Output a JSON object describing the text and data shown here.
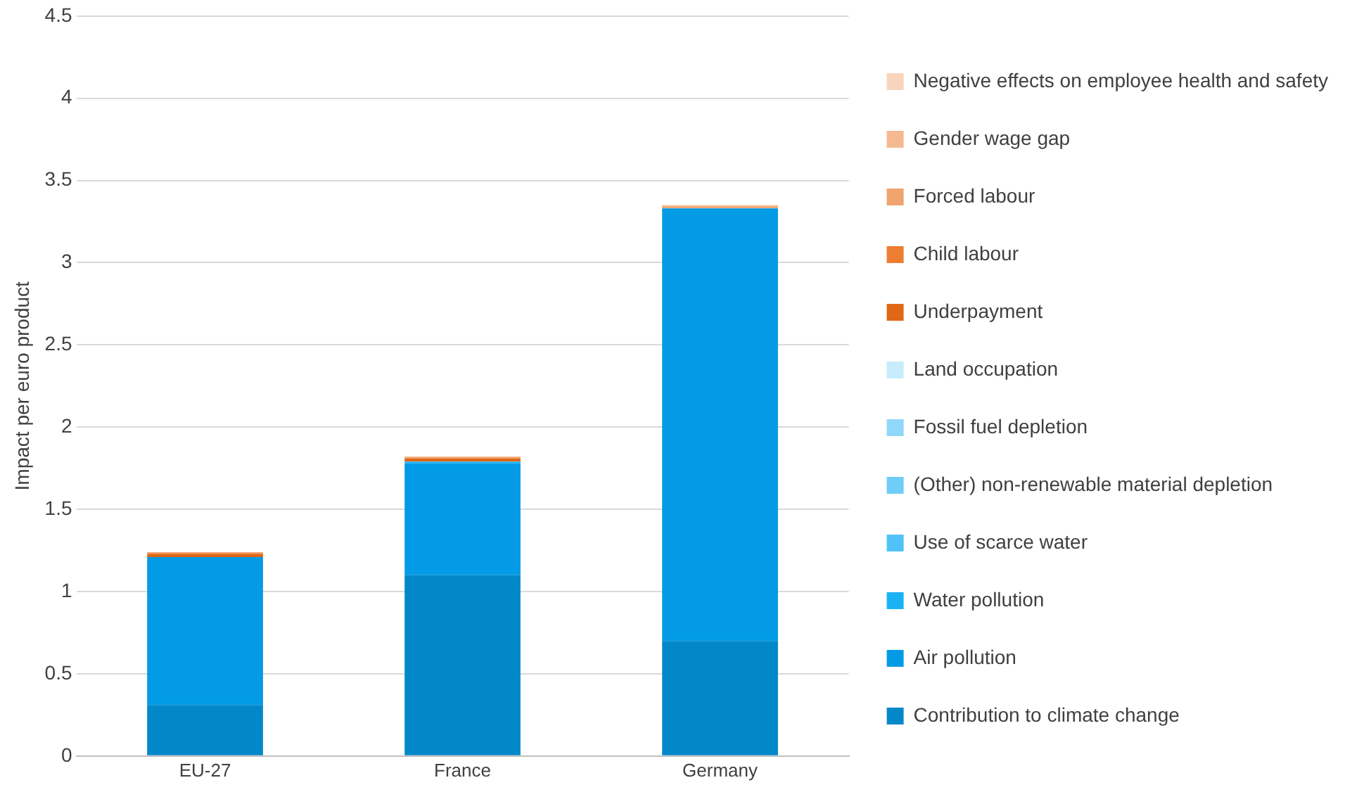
{
  "chart_data": {
    "type": "bar",
    "stacked": true,
    "ylabel": "Impact per euro product",
    "categories": [
      "EU-27",
      "France",
      "Germany"
    ],
    "ylim": [
      0,
      4.5
    ],
    "yticks": [
      0,
      0.5,
      1,
      1.5,
      2,
      2.5,
      3,
      3.5,
      4,
      4.5
    ],
    "grid": "y",
    "legend": "right",
    "series": [
      {
        "name": "Contribution to climate change",
        "color": "#0288c9",
        "values": [
          0.31,
          1.1,
          0.7
        ]
      },
      {
        "name": "Air pollution",
        "color": "#039be5",
        "values": [
          0.9,
          0.68,
          2.63
        ]
      },
      {
        "name": "Water pollution",
        "color": "#1ab2f5",
        "values": [
          0,
          0.01,
          0
        ]
      },
      {
        "name": "Use of scarce water",
        "color": "#4fc3f7",
        "values": [
          0,
          0,
          0
        ]
      },
      {
        "name": "(Other) non-renewable material depletion",
        "color": "#6fcdf7",
        "values": [
          0,
          0,
          0
        ]
      },
      {
        "name": "Fossil fuel depletion",
        "color": "#8fd8f9",
        "values": [
          0,
          0,
          0
        ]
      },
      {
        "name": "Land occupation",
        "color": "#c8ecfb",
        "values": [
          0,
          0,
          0
        ]
      },
      {
        "name": "Underpayment",
        "color": "#e06716",
        "values": [
          0.02,
          0.02,
          0
        ]
      },
      {
        "name": "Child labour",
        "color": "#ed7d31",
        "values": [
          0,
          0,
          0
        ]
      },
      {
        "name": "Forced labour",
        "color": "#f0a46e",
        "values": [
          0.01,
          0.01,
          0.01
        ]
      },
      {
        "name": "Gender wage gap",
        "color": "#f4b990",
        "values": [
          0,
          0,
          0.01
        ]
      },
      {
        "name": "Negative effects on employee health and safety",
        "color": "#f9d4bc",
        "values": [
          0,
          0,
          0
        ]
      }
    ]
  }
}
